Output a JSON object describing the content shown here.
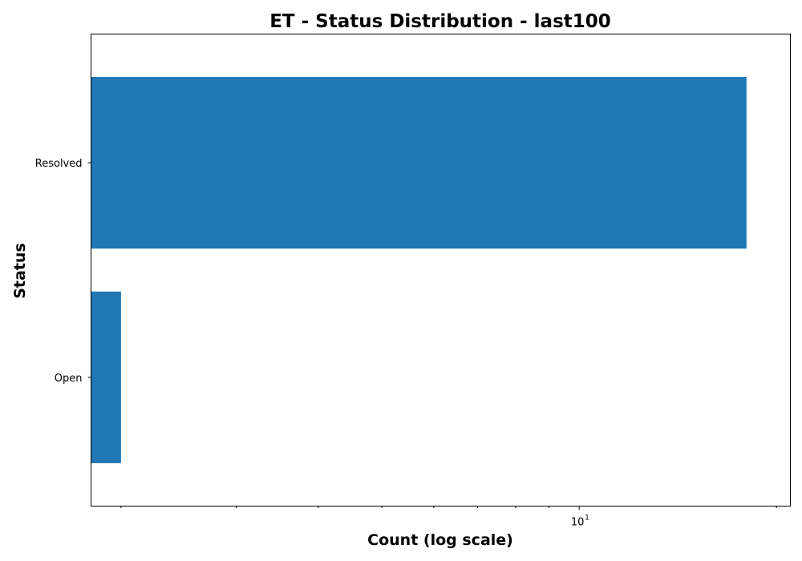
{
  "chart_data": {
    "type": "bar",
    "orientation": "horizontal",
    "title": "ET - Status Distribution - last100",
    "xlabel": "Count (log scale)",
    "ylabel": "Status",
    "xscale": "log",
    "xlim": [
      1.8,
      21
    ],
    "categories": [
      "Resolved",
      "Open"
    ],
    "values": [
      18,
      2
    ],
    "bar_color": "#1f77b4",
    "x_ticks": [
      {
        "value": 10,
        "base": "10",
        "exp": "1"
      }
    ],
    "x_minor_ticks": [
      2,
      3,
      4,
      5,
      6,
      7,
      8,
      9,
      20
    ],
    "grid": false,
    "legend": "none"
  }
}
